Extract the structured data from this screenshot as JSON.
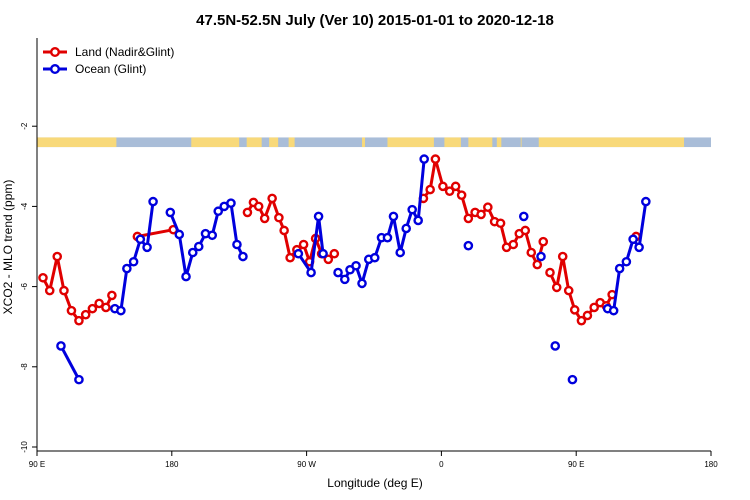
{
  "chart_data": {
    "type": "line",
    "title": "47.5N-52.5N July (Ver 10)   2015-01-01 to 2020-12-18",
    "xlabel": "Longitude (deg E)",
    "ylabel": "XCO2 - MLO trend (ppm)",
    "x_tick_labels": [
      "90 E",
      "180",
      "90 W",
      "0",
      "90 E",
      "180"
    ],
    "x_tick_values": [
      90,
      180,
      270,
      360,
      450,
      540
    ],
    "xlim": [
      90,
      540
    ],
    "y_tick_labels": [
      "-10",
      "-8",
      "-6",
      "-4",
      "-2"
    ],
    "y_tick_values": [
      -10,
      -8,
      -6,
      -4,
      -2
    ],
    "ylim": [
      -10.1,
      0.2
    ],
    "grid": false,
    "legend_position": "top-left",
    "colors": {
      "land": "#e00000",
      "ocean": "#0000dd",
      "land_band": "#f8d97a",
      "ocean_band": "#a9bdd8"
    },
    "land_ocean_band": {
      "y_range": [
        -2.28,
        -2.52
      ],
      "land_segments": [
        [
          90,
          143
        ],
        [
          193,
          225
        ],
        [
          230,
          240
        ],
        [
          245,
          251
        ],
        [
          258,
          262
        ],
        [
          307,
          309
        ],
        [
          324,
          355
        ],
        [
          362,
          373
        ],
        [
          378,
          394
        ],
        [
          397,
          400
        ],
        [
          413,
          413.5
        ],
        [
          425,
          522
        ]
      ]
    },
    "series": [
      {
        "name": "Land (Nadir&Glint)",
        "color": "#e00000",
        "points": [
          [
            94,
            -5.78
          ],
          [
            98.5,
            -6.1
          ],
          [
            103.5,
            -5.25
          ],
          [
            108,
            -6.1
          ],
          [
            113,
            -6.6
          ],
          [
            118,
            -6.85
          ],
          [
            122.5,
            -6.7
          ],
          [
            127,
            -6.55
          ],
          [
            131.5,
            -6.42
          ],
          [
            136,
            -6.52
          ],
          [
            140,
            -6.22
          ],
          null,
          [
            157,
            -4.75
          ],
          [
            181,
            -4.58
          ],
          null,
          [
            230.5,
            -4.15
          ],
          [
            234.5,
            -3.9
          ],
          [
            238,
            -4.0
          ],
          [
            242,
            -4.3
          ],
          [
            247,
            -3.8
          ],
          [
            251.5,
            -4.28
          ],
          [
            255,
            -4.6
          ],
          [
            259,
            -5.28
          ],
          [
            263.5,
            -5.08
          ],
          [
            268,
            -4.95
          ],
          [
            272,
            -5.38
          ],
          [
            276,
            -4.8
          ],
          [
            280,
            -5.18
          ],
          [
            284.5,
            -5.32
          ],
          [
            288.5,
            -5.18
          ],
          null,
          [
            348,
            -3.8
          ],
          [
            352.5,
            -3.58
          ],
          [
            356,
            -2.82
          ],
          [
            361,
            -3.5
          ],
          [
            365.5,
            -3.62
          ],
          [
            369.5,
            -3.5
          ],
          [
            373.5,
            -3.72
          ],
          [
            378,
            -4.3
          ],
          [
            382.5,
            -4.15
          ],
          [
            386.5,
            -4.2
          ],
          [
            391,
            -4.02
          ],
          [
            395.5,
            -4.38
          ],
          [
            399.5,
            -4.42
          ],
          [
            403.5,
            -5.02
          ],
          [
            408,
            -4.95
          ],
          [
            412,
            -4.68
          ],
          [
            416,
            -4.6
          ],
          [
            420,
            -5.15
          ],
          [
            424,
            -5.45
          ],
          [
            428,
            -4.88
          ],
          null,
          [
            432.5,
            -5.65
          ],
          [
            437,
            -6.02
          ],
          [
            441,
            -5.25
          ],
          [
            445,
            -6.1
          ],
          [
            449,
            -6.58
          ],
          [
            453.5,
            -6.85
          ],
          [
            457.5,
            -6.72
          ],
          [
            462,
            -6.52
          ],
          [
            466,
            -6.4
          ],
          [
            470,
            -6.48
          ],
          [
            474,
            -6.2
          ],
          null,
          [
            490,
            -4.75
          ]
        ]
      },
      {
        "name": "Ocean (Glint)",
        "color": "#0000dd",
        "points": [
          [
            106,
            -7.48
          ],
          [
            118,
            -8.32
          ],
          null,
          [
            142,
            -6.55
          ],
          [
            146,
            -6.6
          ],
          [
            150,
            -5.55
          ],
          [
            154.5,
            -5.38
          ],
          [
            159,
            -4.82
          ],
          [
            163.5,
            -5.02
          ],
          [
            167.5,
            -3.88
          ],
          null,
          [
            179,
            -4.15
          ],
          [
            185,
            -4.7
          ],
          [
            189.5,
            -5.75
          ],
          [
            194,
            -5.15
          ],
          [
            198,
            -5.0
          ],
          [
            202.5,
            -4.68
          ],
          [
            207,
            -4.72
          ],
          [
            211,
            -4.12
          ],
          [
            215,
            -4.0
          ],
          [
            219.5,
            -3.92
          ],
          [
            223.5,
            -4.95
          ],
          [
            227.5,
            -5.25
          ],
          null,
          [
            264.5,
            -5.18
          ],
          [
            273,
            -5.65
          ],
          [
            278,
            -4.25
          ],
          [
            281,
            -5.18
          ],
          null,
          [
            291,
            -5.65
          ],
          [
            295.5,
            -5.82
          ],
          [
            299,
            -5.58
          ],
          [
            303,
            -5.48
          ],
          [
            307,
            -5.92
          ],
          [
            311.5,
            -5.32
          ],
          [
            315.5,
            -5.28
          ],
          [
            320,
            -4.78
          ],
          [
            324,
            -4.78
          ],
          [
            328,
            -4.25
          ],
          [
            332.5,
            -5.15
          ],
          [
            336.5,
            -4.55
          ],
          [
            340.5,
            -4.08
          ],
          [
            344.5,
            -4.35
          ],
          [
            348.5,
            -2.82
          ],
          null,
          [
            378,
            -4.98
          ],
          null,
          [
            415,
            -4.25
          ],
          null,
          [
            426.5,
            -5.25
          ],
          null,
          [
            436,
            -7.48
          ],
          null,
          [
            447.5,
            -8.32
          ],
          null,
          [
            471,
            -6.55
          ],
          [
            475,
            -6.6
          ],
          [
            479,
            -5.55
          ],
          [
            483.5,
            -5.38
          ],
          [
            488,
            -4.82
          ],
          [
            492,
            -5.02
          ],
          [
            496.5,
            -3.88
          ]
        ]
      }
    ]
  }
}
